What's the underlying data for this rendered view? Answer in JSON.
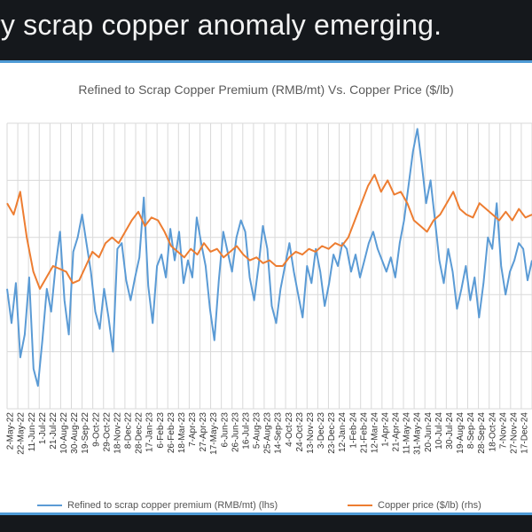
{
  "headline": "ary scrap copper anomaly emerging.",
  "colors": {
    "premium": "#5b9bd5",
    "price": "#ed7d31",
    "grid": "#d9d9d9",
    "accent_border": "#4f9bd6"
  },
  "chart_data": {
    "type": "line",
    "title": "Refined to Scrap Copper Premium (RMB/mt) Vs. Copper Price ($/lb)",
    "x_tick_labels": [
      "2-May-22",
      "22-May-22",
      "11-Jun-22",
      "1-Jul-22",
      "21-Jul-22",
      "10-Aug-22",
      "30-Aug-22",
      "19-Sep-22",
      "9-Oct-22",
      "29-Oct-22",
      "18-Nov-22",
      "8-Dec-22",
      "28-Dec-22",
      "17-Jan-23",
      "6-Feb-23",
      "26-Feb-23",
      "18-Mar-23",
      "7-Apr-23",
      "27-Apr-23",
      "17-May-23",
      "6-Jun-23",
      "26-Jun-23",
      "16-Jul-23",
      "5-Aug-23",
      "25-Aug-23",
      "14-Sep-23",
      "4-Oct-23",
      "24-Oct-23",
      "13-Nov-23",
      "3-Dec-23",
      "23-Dec-23",
      "12-Jan-24",
      "1-Feb-24",
      "21-Feb-24",
      "12-Mar-24",
      "1-Apr-24",
      "21-Apr-24",
      "11-May-24",
      "31-May-24",
      "20-Jun-24",
      "10-Jul-24",
      "30-Jul-24",
      "19-Aug-24",
      "8-Sep-24",
      "28-Sep-24",
      "18-Oct-24",
      "7-Nov-24",
      "27-Nov-24",
      "17-Dec-24"
    ],
    "series": [
      {
        "name": "Refined to scrap copper premium (RMB/mt) (lhs)",
        "axis": "lhs",
        "values": [
          0.42,
          0.3,
          0.44,
          0.18,
          0.26,
          0.46,
          0.14,
          0.08,
          0.24,
          0.42,
          0.34,
          0.5,
          0.62,
          0.38,
          0.26,
          0.55,
          0.6,
          0.68,
          0.58,
          0.48,
          0.34,
          0.28,
          0.42,
          0.32,
          0.2,
          0.56,
          0.58,
          0.45,
          0.38,
          0.46,
          0.53,
          0.74,
          0.43,
          0.3,
          0.5,
          0.54,
          0.46,
          0.63,
          0.52,
          0.62,
          0.44,
          0.52,
          0.46,
          0.67,
          0.58,
          0.5,
          0.35,
          0.24,
          0.45,
          0.62,
          0.55,
          0.48,
          0.6,
          0.66,
          0.62,
          0.46,
          0.38,
          0.5,
          0.64,
          0.56,
          0.36,
          0.3,
          0.42,
          0.5,
          0.58,
          0.48,
          0.4,
          0.32,
          0.5,
          0.44,
          0.56,
          0.48,
          0.36,
          0.44,
          0.54,
          0.5,
          0.58,
          0.56,
          0.48,
          0.54,
          0.46,
          0.52,
          0.58,
          0.62,
          0.56,
          0.52,
          0.48,
          0.53,
          0.46,
          0.58,
          0.66,
          0.78,
          0.9,
          0.98,
          0.86,
          0.72,
          0.8,
          0.66,
          0.52,
          0.44,
          0.56,
          0.48,
          0.35,
          0.42,
          0.5,
          0.38,
          0.46,
          0.32,
          0.44,
          0.6,
          0.56,
          0.72,
          0.5,
          0.4,
          0.48,
          0.52,
          0.58,
          0.56,
          0.45,
          0.52
        ]
      },
      {
        "name": "Copper price ($/lb) (rhs)",
        "axis": "rhs",
        "values": [
          0.72,
          0.68,
          0.76,
          0.6,
          0.48,
          0.42,
          0.46,
          0.5,
          0.49,
          0.48,
          0.44,
          0.45,
          0.5,
          0.55,
          0.53,
          0.58,
          0.6,
          0.58,
          0.62,
          0.66,
          0.69,
          0.64,
          0.67,
          0.66,
          0.62,
          0.57,
          0.55,
          0.53,
          0.56,
          0.54,
          0.58,
          0.55,
          0.56,
          0.53,
          0.55,
          0.57,
          0.54,
          0.52,
          0.53,
          0.51,
          0.52,
          0.5,
          0.5,
          0.53,
          0.55,
          0.54,
          0.56,
          0.55,
          0.57,
          0.56,
          0.58,
          0.57,
          0.6,
          0.66,
          0.72,
          0.78,
          0.82,
          0.76,
          0.8,
          0.75,
          0.76,
          0.72,
          0.66,
          0.64,
          0.62,
          0.66,
          0.68,
          0.72,
          0.76,
          0.7,
          0.68,
          0.67,
          0.72,
          0.7,
          0.68,
          0.66,
          0.69,
          0.66,
          0.7,
          0.67,
          0.68
        ]
      }
    ],
    "grid": true,
    "legend": "bottom"
  },
  "legend": {
    "premium_label": "Refined to scrap copper premium (RMB/mt) (lhs)",
    "price_label": "Copper price ($/lb) (rhs)"
  }
}
